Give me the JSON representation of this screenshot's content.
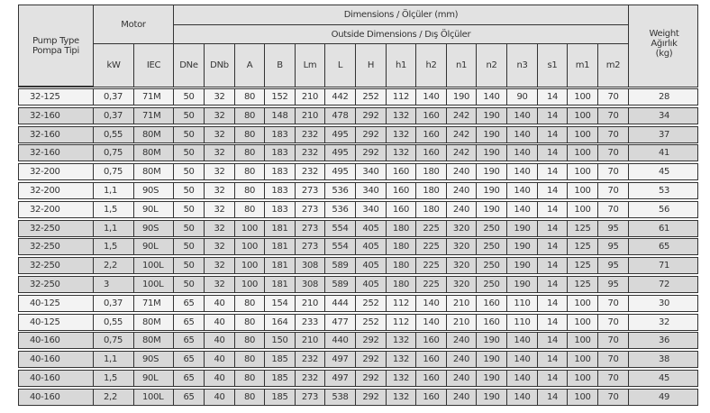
{
  "header": {
    "pump_type": "Pump Type",
    "pump_type_tr": "Pompa Tipi",
    "motor": "Motor",
    "dimensions": "Dimensions / Ölçüler (mm)",
    "outside_dimensions": "Outside Dimensions / Dış Ölçüler",
    "weight": "Weight",
    "weight_tr": "Ağırlık",
    "weight_unit": "(kg)",
    "columns": [
      "kW",
      "IEC",
      "DNe",
      "DNb",
      "A",
      "B",
      "Lm",
      "L",
      "H",
      "h1",
      "h2",
      "n1",
      "n2",
      "n3",
      "s1",
      "m1",
      "m2"
    ]
  },
  "rows": [
    {
      "shaded": false,
      "cells": [
        "32-125",
        "0,37",
        "71M",
        "50",
        "32",
        "80",
        "152",
        "210",
        "442",
        "252",
        "112",
        "140",
        "190",
        "140",
        "90",
        "14",
        "100",
        "70",
        "28"
      ]
    },
    {
      "shaded": true,
      "cells": [
        "32-160",
        "0,37",
        "71M",
        "50",
        "32",
        "80",
        "148",
        "210",
        "478",
        "292",
        "132",
        "160",
        "242",
        "190",
        "140",
        "14",
        "100",
        "70",
        "34"
      ]
    },
    {
      "shaded": true,
      "cells": [
        "32-160",
        "0,55",
        "80M",
        "50",
        "32",
        "80",
        "183",
        "232",
        "495",
        "292",
        "132",
        "160",
        "242",
        "190",
        "140",
        "14",
        "100",
        "70",
        "37"
      ]
    },
    {
      "shaded": true,
      "cells": [
        "32-160",
        "0,75",
        "80M",
        "50",
        "32",
        "80",
        "183",
        "232",
        "495",
        "292",
        "132",
        "160",
        "242",
        "190",
        "140",
        "14",
        "100",
        "70",
        "41"
      ]
    },
    {
      "shaded": false,
      "cells": [
        "32-200",
        "0,75",
        "80M",
        "50",
        "32",
        "80",
        "183",
        "232",
        "495",
        "340",
        "160",
        "180",
        "240",
        "190",
        "140",
        "14",
        "100",
        "70",
        "45"
      ]
    },
    {
      "shaded": false,
      "cells": [
        "32-200",
        "1,1",
        "90S",
        "50",
        "32",
        "80",
        "183",
        "273",
        "536",
        "340",
        "160",
        "180",
        "240",
        "190",
        "140",
        "14",
        "100",
        "70",
        "53"
      ]
    },
    {
      "shaded": false,
      "cells": [
        "32-200",
        "1,5",
        "90L",
        "50",
        "32",
        "80",
        "183",
        "273",
        "536",
        "340",
        "160",
        "180",
        "240",
        "190",
        "140",
        "14",
        "100",
        "70",
        "56"
      ]
    },
    {
      "shaded": true,
      "cells": [
        "32-250",
        "1,1",
        "90S",
        "50",
        "32",
        "100",
        "181",
        "273",
        "554",
        "405",
        "180",
        "225",
        "320",
        "250",
        "190",
        "14",
        "125",
        "95",
        "61"
      ]
    },
    {
      "shaded": true,
      "cells": [
        "32-250",
        "1,5",
        "90L",
        "50",
        "32",
        "100",
        "181",
        "273",
        "554",
        "405",
        "180",
        "225",
        "320",
        "250",
        "190",
        "14",
        "125",
        "95",
        "65"
      ]
    },
    {
      "shaded": true,
      "cells": [
        "32-250",
        "2,2",
        "100L",
        "50",
        "32",
        "100",
        "181",
        "308",
        "589",
        "405",
        "180",
        "225",
        "320",
        "250",
        "190",
        "14",
        "125",
        "95",
        "71"
      ]
    },
    {
      "shaded": true,
      "cells": [
        "32-250",
        "3",
        "100L",
        "50",
        "32",
        "100",
        "181",
        "308",
        "589",
        "405",
        "180",
        "225",
        "320",
        "250",
        "190",
        "14",
        "125",
        "95",
        "72"
      ]
    },
    {
      "shaded": false,
      "cells": [
        "40-125",
        "0,37",
        "71M",
        "65",
        "40",
        "80",
        "154",
        "210",
        "444",
        "252",
        "112",
        "140",
        "210",
        "160",
        "110",
        "14",
        "100",
        "70",
        "30"
      ]
    },
    {
      "shaded": false,
      "cells": [
        "40-125",
        "0,55",
        "80M",
        "65",
        "40",
        "80",
        "164",
        "233",
        "477",
        "252",
        "112",
        "140",
        "210",
        "160",
        "110",
        "14",
        "100",
        "70",
        "32"
      ]
    },
    {
      "shaded": true,
      "cells": [
        "40-160",
        "0,75",
        "80M",
        "65",
        "40",
        "80",
        "150",
        "210",
        "440",
        "292",
        "132",
        "160",
        "240",
        "190",
        "140",
        "14",
        "100",
        "70",
        "36"
      ]
    },
    {
      "shaded": true,
      "cells": [
        "40-160",
        "1,1",
        "90S",
        "65",
        "40",
        "80",
        "185",
        "232",
        "497",
        "292",
        "132",
        "160",
        "240",
        "190",
        "140",
        "14",
        "100",
        "70",
        "38"
      ]
    },
    {
      "shaded": true,
      "cells": [
        "40-160",
        "1,5",
        "90L",
        "65",
        "40",
        "80",
        "185",
        "232",
        "497",
        "292",
        "132",
        "160",
        "240",
        "190",
        "140",
        "14",
        "100",
        "70",
        "45"
      ]
    },
    {
      "shaded": true,
      "cells": [
        "40-160",
        "2,2",
        "100L",
        "65",
        "40",
        "80",
        "185",
        "273",
        "538",
        "292",
        "132",
        "160",
        "240",
        "190",
        "140",
        "14",
        "100",
        "70",
        "49"
      ]
    }
  ]
}
